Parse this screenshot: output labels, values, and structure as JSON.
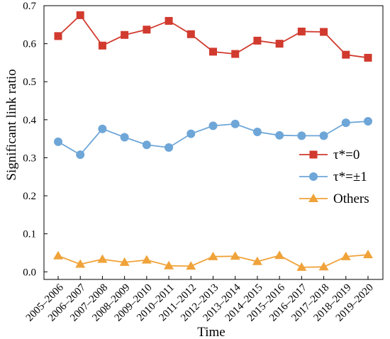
{
  "chart_data": {
    "type": "line",
    "xlabel": "Time",
    "ylabel": "Significant link ratio",
    "ylim": [
      -0.02,
      0.7
    ],
    "yticks": [
      "0.0",
      "0.1",
      "0.2",
      "0.3",
      "0.4",
      "0.5",
      "0.6",
      "0.7"
    ],
    "categories": [
      "2005–2006",
      "2006–2007",
      "2007–2008",
      "2008–2009",
      "2009–2010",
      "2010–2011",
      "2011–2012",
      "2012–2013",
      "2013–2014",
      "2014–2015",
      "2015–2016",
      "2016–2017",
      "2017–2018",
      "2018–2019",
      "2019–2020"
    ],
    "legend_position": "right",
    "series": [
      {
        "name": "τ*=0",
        "color": "#d13a2e",
        "marker": "square",
        "values": [
          0.62,
          0.675,
          0.595,
          0.623,
          0.637,
          0.66,
          0.625,
          0.579,
          0.573,
          0.608,
          0.6,
          0.632,
          0.631,
          0.571,
          0.563
        ]
      },
      {
        "name": "τ*=±1",
        "color": "#6ea6d8",
        "marker": "circle",
        "values": [
          0.342,
          0.308,
          0.376,
          0.354,
          0.334,
          0.327,
          0.363,
          0.384,
          0.389,
          0.368,
          0.359,
          0.358,
          0.358,
          0.392,
          0.396
        ]
      },
      {
        "name": "Others",
        "color": "#f0a33a",
        "marker": "triangle",
        "values": [
          0.042,
          0.02,
          0.033,
          0.025,
          0.031,
          0.016,
          0.015,
          0.04,
          0.041,
          0.027,
          0.043,
          0.012,
          0.013,
          0.04,
          0.045
        ]
      }
    ]
  }
}
